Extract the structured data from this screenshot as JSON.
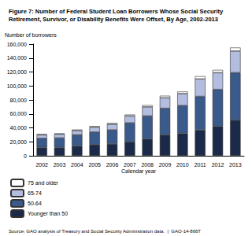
{
  "chart_data": {
    "type": "bar",
    "title": "Figure 7: Number of Federal Student Loan Borrowers Whose Social Security Retirement, Survivor, or Disability Benefits Were Offset, By Age, 2002-2013",
    "y_label": "Number of borrowers",
    "x_label": "Calendar year",
    "source": "Source: GAO analysis of Treasury and Social Security Administration data.  |  GAO-14-866T",
    "categories": [
      "2002",
      "2003",
      "2004",
      "2005",
      "2006",
      "2007",
      "2008",
      "2009",
      "2010",
      "2011",
      "2012",
      "2013"
    ],
    "series": [
      {
        "name": "Younger than 50",
        "color": "#1c2a4a",
        "values": [
          12000,
          12000,
          14000,
          16000,
          17000,
          20000,
          24000,
          30000,
          32000,
          37000,
          42000,
          51000
        ]
      },
      {
        "name": "50-64",
        "color": "#3b5a8c",
        "values": [
          13000,
          13500,
          16000,
          18000,
          20000,
          27000,
          33000,
          38000,
          40000,
          48000,
          53000,
          68000
        ]
      },
      {
        "name": "65-74",
        "color": "#b3bde0",
        "values": [
          5000,
          5500,
          6000,
          7000,
          8000,
          10000,
          13000,
          15000,
          17000,
          25000,
          24000,
          31000
        ]
      },
      {
        "name": "75 and older",
        "color": "#ffffff",
        "values": [
          1000,
          1000,
          1500,
          1500,
          2000,
          2000,
          2500,
          3000,
          3000,
          4000,
          4000,
          5000
        ]
      }
    ],
    "ylim": [
      0,
      160000
    ],
    "yticks": [
      0,
      {
        "value": 20000,
        "label": "20,000"
      },
      {
        "value": 40000,
        "label": "40,000"
      },
      {
        "value": 60000,
        "label": "60,000"
      },
      {
        "value": 80000,
        "label": "80,000"
      },
      {
        "value": 100000,
        "label": "100,000"
      },
      {
        "value": 120000,
        "label": "120,000"
      },
      {
        "value": 140000,
        "label": "140,000"
      },
      {
        "value": 160000,
        "label": "160,000"
      }
    ],
    "stacked": true,
    "grid": false,
    "legend": "bottom-left"
  }
}
